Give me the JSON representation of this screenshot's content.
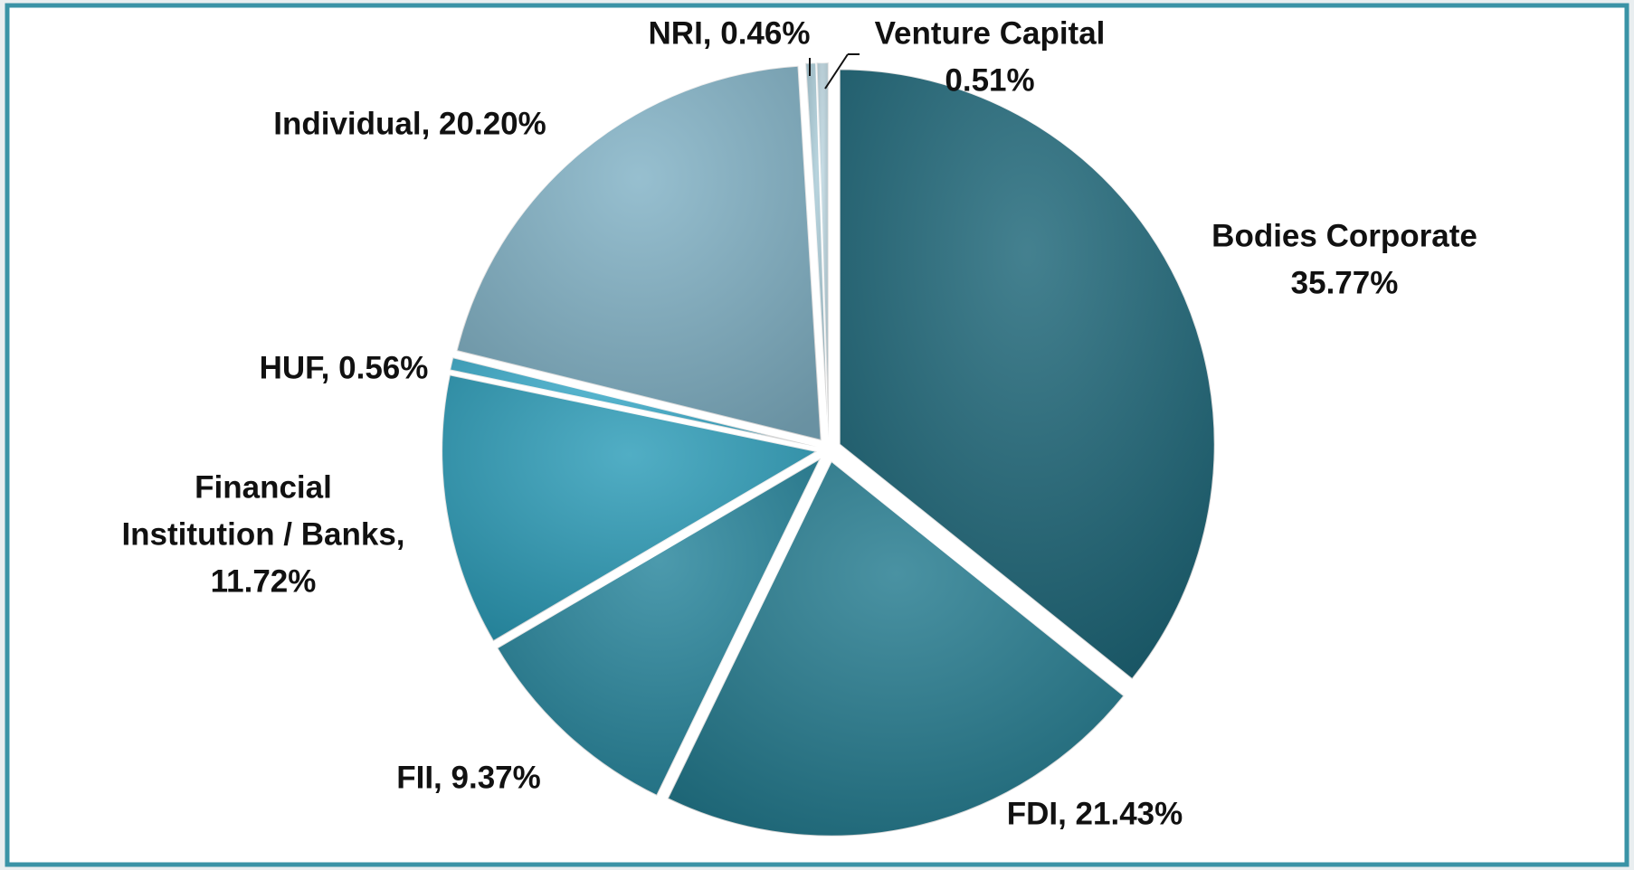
{
  "chart_data": {
    "type": "pie",
    "labels": [
      [
        "Bodies Corporate",
        "35.77%"
      ],
      [
        "FDI, 21.43%"
      ],
      [
        "FII, 9.37%"
      ],
      [
        "Financial",
        "Institution / Banks,",
        "11.72%"
      ],
      [
        "HUF, 0.56%"
      ],
      [
        "Individual, 20.20%"
      ],
      [
        "NRI, 0.46%"
      ],
      [
        "Venture Capital",
        "0.51%"
      ]
    ],
    "values": [
      35.77,
      21.43,
      9.37,
      11.72,
      0.56,
      20.2,
      0.46,
      0.51
    ],
    "colors": [
      "#1b6577",
      "#227a8e",
      "#25849b",
      "#2b9cb8",
      "#3badcc",
      "#80b1c5",
      "#a9cbd7",
      "#bcd6e0"
    ]
  }
}
